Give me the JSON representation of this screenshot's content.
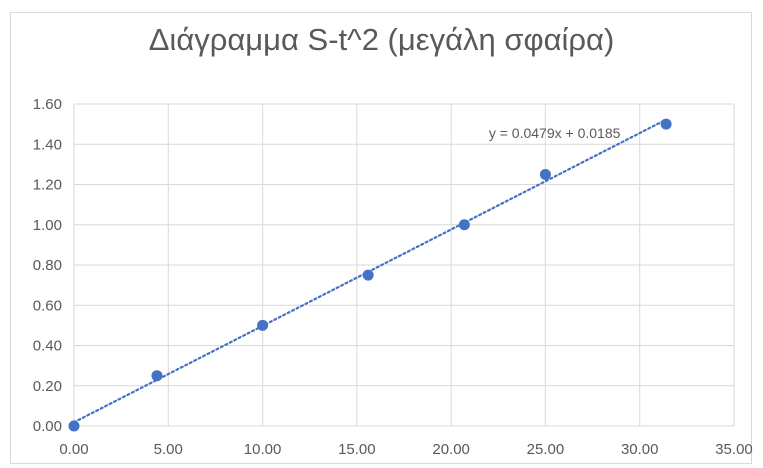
{
  "chart_data": {
    "type": "scatter",
    "title": "Διάγραμμα S-t^2 (μεγάλη σφαίρα)",
    "xlabel": "",
    "ylabel": "",
    "xlim": [
      0,
      35
    ],
    "ylim": [
      0,
      1.6
    ],
    "x_ticks": [
      "0.00",
      "5.00",
      "10.00",
      "15.00",
      "20.00",
      "25.00",
      "30.00",
      "35.00"
    ],
    "y_ticks": [
      "0.00",
      "0.20",
      "0.40",
      "0.60",
      "0.80",
      "1.00",
      "1.20",
      "1.40",
      "1.60"
    ],
    "grid": true,
    "series": [
      {
        "x": [
          0.0,
          4.4,
          10.0,
          15.6,
          20.7,
          25.0,
          31.4
        ],
        "y": [
          0.0,
          0.25,
          0.5,
          0.75,
          1.0,
          1.25,
          1.5
        ],
        "color": "#4472c4"
      }
    ],
    "trendline": {
      "type": "linear",
      "slope": 0.0479,
      "intercept": 0.0185,
      "equation": "y = 0.0479x + 0.0185",
      "style": "dotted",
      "color": "#4472c4"
    }
  }
}
